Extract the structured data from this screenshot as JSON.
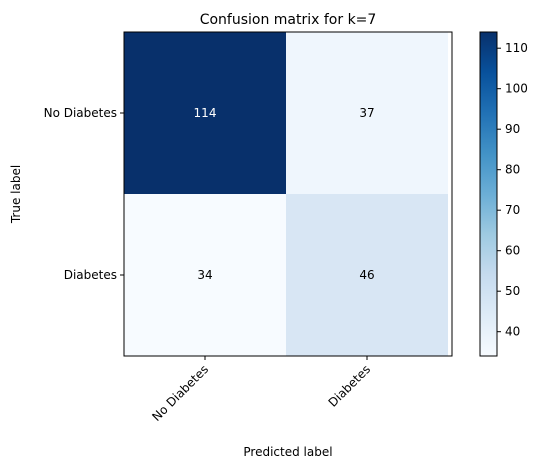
{
  "chart_data": {
    "type": "heatmap",
    "title": "Confusion matrix for k=7",
    "xlabel": "Predicted label",
    "ylabel": "True label",
    "x_categories": [
      "No Diabetes",
      "Diabetes"
    ],
    "y_categories": [
      "No Diabetes",
      "Diabetes"
    ],
    "values": [
      [
        114,
        37
      ],
      [
        34,
        46
      ]
    ],
    "colormap": "Blues",
    "color_range": [
      34,
      114
    ],
    "colorbar_ticks": [
      40,
      50,
      60,
      70,
      80,
      90,
      100,
      110
    ],
    "cell_colors": [
      [
        "#08306b",
        "#eff6fd"
      ],
      [
        "#f7fbff",
        "#d8e6f4"
      ]
    ],
    "text_colors": [
      [
        "#ffffff",
        "#000000"
      ],
      [
        "#000000",
        "#000000"
      ]
    ],
    "grid": false
  }
}
